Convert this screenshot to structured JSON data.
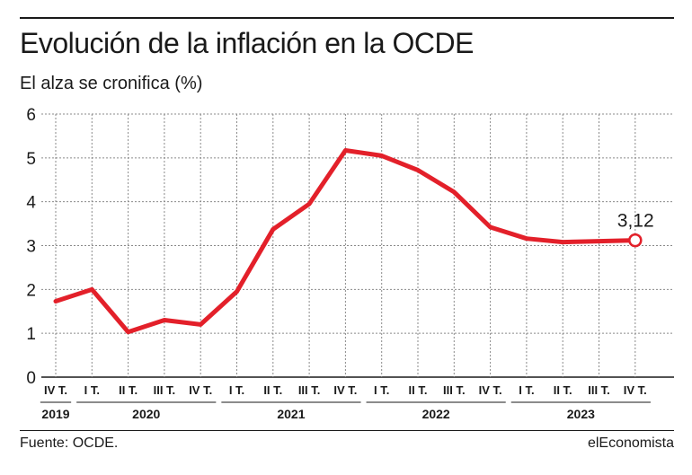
{
  "header": {
    "title": "Evolución de la inflación en la OCDE",
    "subtitle": "El alza se cronifica (%)"
  },
  "footer": {
    "source": "Fuente: OCDE.",
    "brand": "elEconomista"
  },
  "colors": {
    "line": "#e3202a",
    "grid": "#8a8a8a",
    "text": "#1a1a1a"
  },
  "chart_data": {
    "type": "line",
    "title": "Evolución de la inflación en la OCDE",
    "subtitle": "El alza se cronifica (%)",
    "ylim": [
      0,
      6
    ],
    "yticks": [
      "0",
      "1",
      "2",
      "3",
      "4",
      "5",
      "6"
    ],
    "grid": true,
    "x": [
      "IV T.",
      "I T.",
      "II T.",
      "III T.",
      "IV T.",
      "I T.",
      "II T.",
      "III T.",
      "IV T.",
      "I T.",
      "II T.",
      "III T.",
      "IV T.",
      "I T.",
      "II T.",
      "III T.",
      "IV T."
    ],
    "year_groups": [
      {
        "label": "2019",
        "count": 1
      },
      {
        "label": "2020",
        "count": 4
      },
      {
        "label": "2021",
        "count": 4
      },
      {
        "label": "2022",
        "count": 4
      },
      {
        "label": "2023",
        "count": 4
      }
    ],
    "series": [
      {
        "values": [
          1.73,
          2.0,
          1.03,
          1.3,
          1.2,
          1.95,
          3.37,
          3.95,
          5.17,
          5.05,
          4.72,
          4.22,
          3.42,
          3.16,
          3.08,
          3.1,
          3.12
        ]
      }
    ],
    "annotation": {
      "label": "3,12",
      "index": 16
    }
  }
}
